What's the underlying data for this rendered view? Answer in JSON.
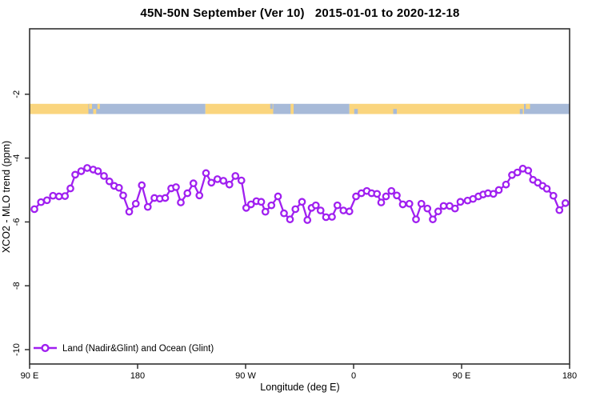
{
  "title": "45N-50N September (Ver 10)   2015-01-01 to 2020-12-18",
  "legend": {
    "label": "Land (Nadir&Glint) and Ocean (Glint)",
    "marker": "open-circle-on-line"
  },
  "colors": {
    "series": "#A020F0",
    "land_band": "#FAD57E",
    "ocean_band": "#A7BAD8",
    "axis": "#303030",
    "marker_fill": "#ffffff",
    "text": "#000000",
    "background": "#ffffff"
  },
  "chart_data": {
    "type": "line",
    "title": "45N-50N September (Ver 10)   2015-01-01 to 2020-12-18",
    "xlabel": "Longitude (deg E)",
    "ylabel": "XCO2 - MLO trend (ppm)",
    "x_axis_note": "axis spans 450 deg of longitude starting at 90 E, wrapping east through 180, 90 W, 0, 90 E to 180",
    "x_deg_range": [
      0,
      450
    ],
    "ylim": [
      -10.45,
      0.05
    ],
    "grid": false,
    "legend_position": "bottom-left-inside",
    "x_ticks": [
      {
        "deg": 0,
        "label": "90 E"
      },
      {
        "deg": 90,
        "label": "180"
      },
      {
        "deg": 180,
        "label": "90 W"
      },
      {
        "deg": 270,
        "label": "0"
      },
      {
        "deg": 360,
        "label": "90 E"
      },
      {
        "deg": 450,
        "label": "180"
      }
    ],
    "y_ticks": [
      {
        "value": -2,
        "label": "-2"
      },
      {
        "value": -4,
        "label": "-4"
      },
      {
        "value": -6,
        "label": "-6"
      },
      {
        "value": -8,
        "label": "-8"
      },
      {
        "value": -10,
        "label": "-10"
      }
    ],
    "surface_band": {
      "description": "land(yellow)/ocean(blue) strip drawn near -2.5 ppm",
      "value_top": -2.3,
      "value_bottom": -2.62,
      "segments": [
        {
          "from": 0,
          "to": 49,
          "type": "land"
        },
        {
          "from": 49,
          "to": 146.5,
          "type": "ocean"
        },
        {
          "from": 146.5,
          "to": 203,
          "type": "land"
        },
        {
          "from": 203,
          "to": 266.5,
          "type": "ocean"
        },
        {
          "from": 266.5,
          "to": 412,
          "type": "land"
        },
        {
          "from": 412,
          "to": 450,
          "type": "ocean"
        }
      ],
      "specks": [
        {
          "from": 49.5,
          "to": 52,
          "type": "land",
          "part": "upper"
        },
        {
          "from": 53,
          "to": 55.5,
          "type": "land",
          "part": "lower"
        },
        {
          "from": 56.5,
          "to": 58.5,
          "type": "land",
          "part": "upper"
        },
        {
          "from": 200.5,
          "to": 202.5,
          "type": "ocean",
          "part": "upper"
        },
        {
          "from": 217.5,
          "to": 220,
          "type": "land",
          "part": "full"
        },
        {
          "from": 270.5,
          "to": 273.5,
          "type": "ocean",
          "part": "lower"
        },
        {
          "from": 303,
          "to": 306,
          "type": "ocean",
          "part": "lower"
        },
        {
          "from": 408.5,
          "to": 411,
          "type": "ocean",
          "part": "lower"
        },
        {
          "from": 413.5,
          "to": 417,
          "type": "land",
          "part": "upper"
        }
      ]
    },
    "series": [
      {
        "name": "Land (Nadir&Glint) and Ocean (Glint)",
        "color": "#A020F0",
        "marker": "open-circle",
        "points": [
          [
            4,
            -5.6
          ],
          [
            9.5,
            -5.38
          ],
          [
            14.5,
            -5.32
          ],
          [
            19.5,
            -5.18
          ],
          [
            24.5,
            -5.2
          ],
          [
            29.5,
            -5.19
          ],
          [
            34,
            -4.95
          ],
          [
            38,
            -4.52
          ],
          [
            43,
            -4.41
          ],
          [
            48,
            -4.31
          ],
          [
            53,
            -4.36
          ],
          [
            57,
            -4.41
          ],
          [
            62,
            -4.56
          ],
          [
            66.5,
            -4.73
          ],
          [
            70.5,
            -4.87
          ],
          [
            74.5,
            -4.93
          ],
          [
            78,
            -5.17
          ],
          [
            83,
            -5.68
          ],
          [
            88.5,
            -5.43
          ],
          [
            93.5,
            -4.85
          ],
          [
            98.5,
            -5.53
          ],
          [
            104,
            -5.25
          ],
          [
            108.5,
            -5.27
          ],
          [
            113,
            -5.25
          ],
          [
            118,
            -4.95
          ],
          [
            122,
            -4.91
          ],
          [
            126,
            -5.39
          ],
          [
            131.5,
            -5.1
          ],
          [
            136.5,
            -4.79
          ],
          [
            141.5,
            -5.17
          ],
          [
            147,
            -4.47
          ],
          [
            151.5,
            -4.77
          ],
          [
            156.5,
            -4.66
          ],
          [
            161.5,
            -4.71
          ],
          [
            166.5,
            -4.83
          ],
          [
            171.5,
            -4.56
          ],
          [
            176.5,
            -4.7
          ],
          [
            180.5,
            -5.56
          ],
          [
            184.5,
            -5.45
          ],
          [
            189,
            -5.35
          ],
          [
            193,
            -5.37
          ],
          [
            196.5,
            -5.68
          ],
          [
            201.5,
            -5.48
          ],
          [
            207,
            -5.2
          ],
          [
            212,
            -5.73
          ],
          [
            217,
            -5.92
          ],
          [
            221.5,
            -5.6
          ],
          [
            227,
            -5.37
          ],
          [
            231.5,
            -5.94
          ],
          [
            235,
            -5.56
          ],
          [
            238.5,
            -5.48
          ],
          [
            242.5,
            -5.64
          ],
          [
            247,
            -5.85
          ],
          [
            252,
            -5.84
          ],
          [
            256.5,
            -5.48
          ],
          [
            261.5,
            -5.64
          ],
          [
            266.5,
            -5.67
          ],
          [
            272,
            -5.2
          ],
          [
            276.5,
            -5.1
          ],
          [
            281,
            -5.03
          ],
          [
            285,
            -5.1
          ],
          [
            289.5,
            -5.12
          ],
          [
            293,
            -5.39
          ],
          [
            297,
            -5.2
          ],
          [
            301.5,
            -5.03
          ],
          [
            306,
            -5.17
          ],
          [
            311,
            -5.45
          ],
          [
            316.5,
            -5.43
          ],
          [
            322,
            -5.92
          ],
          [
            326.5,
            -5.43
          ],
          [
            331.5,
            -5.58
          ],
          [
            336,
            -5.92
          ],
          [
            340.5,
            -5.67
          ],
          [
            345,
            -5.5
          ],
          [
            350,
            -5.5
          ],
          [
            354.5,
            -5.58
          ],
          [
            359,
            -5.37
          ],
          [
            365,
            -5.33
          ],
          [
            369.5,
            -5.28
          ],
          [
            374,
            -5.2
          ],
          [
            378,
            -5.14
          ],
          [
            382,
            -5.1
          ],
          [
            386.5,
            -5.12
          ],
          [
            391,
            -5.0
          ],
          [
            397,
            -4.83
          ],
          [
            402,
            -4.53
          ],
          [
            406.5,
            -4.45
          ],
          [
            411,
            -4.33
          ],
          [
            415.5,
            -4.39
          ],
          [
            419.5,
            -4.68
          ],
          [
            423.5,
            -4.77
          ],
          [
            427.5,
            -4.87
          ],
          [
            431,
            -4.96
          ],
          [
            436.5,
            -5.18
          ],
          [
            441.5,
            -5.63
          ],
          [
            446.5,
            -5.41
          ]
        ]
      }
    ]
  }
}
